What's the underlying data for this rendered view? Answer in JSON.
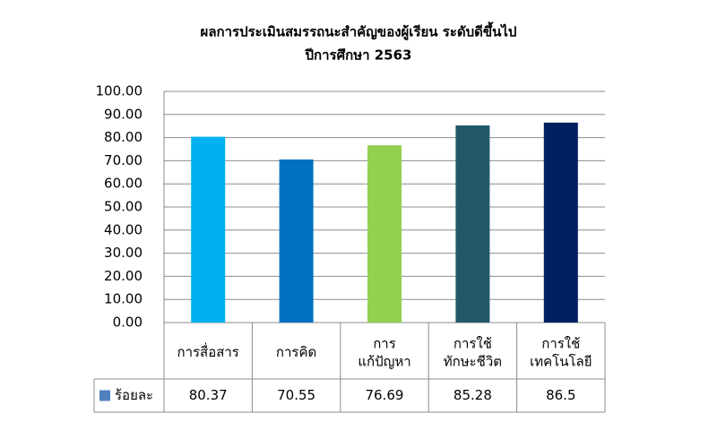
{
  "chart_data": {
    "type": "bar",
    "title": "ผลการประเมินสมรรถนะสำคัญของผู้เรียน ระดับดีขึ้นไป",
    "subtitle": "ปีการศึกษา 2563",
    "categories": [
      "การสื่อสาร",
      "การคิด",
      "การ\nแก้ปัญหา",
      "การใช้\nทักษะชีวิต",
      "การใช้\nเทคโนโลยี"
    ],
    "series": [
      {
        "name": "ร้อยละ",
        "color": "#4f81bd",
        "values": [
          80.37,
          70.55,
          76.69,
          85.28,
          86.5
        ]
      }
    ],
    "colors": [
      "#00b0f0",
      "#0070c0",
      "#92d050",
      "#215968",
      "#002060"
    ],
    "ylim": [
      0,
      100
    ],
    "yticks": [
      {
        "value": 0,
        "label": "0.00"
      },
      {
        "value": 10,
        "label": "10.00"
      },
      {
        "value": 20,
        "label": "20.00"
      },
      {
        "value": 30,
        "label": "30.00"
      },
      {
        "value": 40,
        "label": "40.00"
      },
      {
        "value": 50,
        "label": "50.00"
      },
      {
        "value": 60,
        "label": "60.00"
      },
      {
        "value": 70,
        "label": "70.00"
      },
      {
        "value": 80,
        "label": "80.00"
      },
      {
        "value": 90,
        "label": "90.00"
      },
      {
        "value": 100,
        "label": "100.00"
      }
    ],
    "grid": true,
    "data_table": true
  }
}
